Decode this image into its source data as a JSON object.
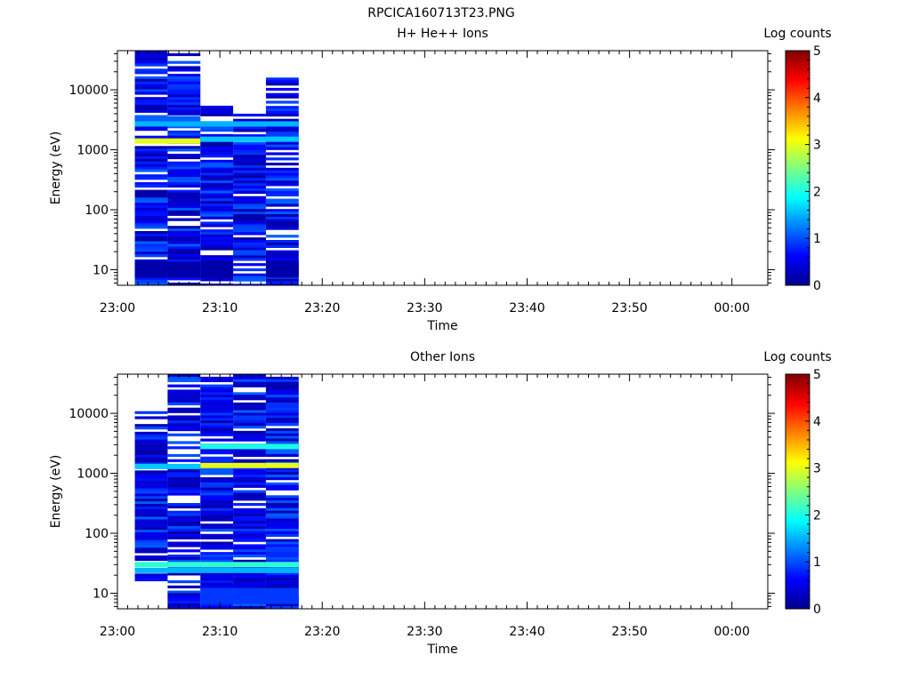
{
  "figure_title": "RPCICA160713T23.PNG",
  "chart_data": [
    {
      "type": "heatmap",
      "title": "H+ He++ Ions",
      "xlabel": "Time",
      "ylabel": "Energy (eV)",
      "x_ticks": [
        "23:00",
        "23:10",
        "23:20",
        "23:30",
        "23:40",
        "23:50",
        "00:00"
      ],
      "x_range_minutes": [
        0,
        63.5
      ],
      "y_scale": "log",
      "y_range": [
        5.5,
        45000
      ],
      "y_ticks": [
        10,
        100,
        1000,
        10000
      ],
      "y_tick_labels": [
        "10",
        "100",
        "1000",
        "10000"
      ],
      "colorbar": {
        "label": "Log counts",
        "range": [
          0,
          5
        ],
        "ticks": [
          "0",
          "1",
          "2",
          "3",
          "4",
          "5"
        ]
      },
      "columns": [
        {
          "t_start": 1.7,
          "t_end": 4.9,
          "e_min": 5.5,
          "e_max": 45000
        },
        {
          "t_start": 4.9,
          "t_end": 8.1,
          "e_min": 5.5,
          "e_max": 45000
        },
        {
          "t_start": 8.1,
          "t_end": 11.3,
          "e_min": 5.5,
          "e_max": 6000
        },
        {
          "t_start": 11.3,
          "t_end": 14.5,
          "e_min": 5.5,
          "e_max": 4000
        },
        {
          "t_start": 14.5,
          "t_end": 17.7,
          "e_min": 5.5,
          "e_max": 16000
        }
      ],
      "bands": [
        {
          "energy": 1400,
          "log_counts": 3.0,
          "col_from": 0,
          "col_to": 1
        },
        {
          "energy": 1500,
          "log_counts": 1.6,
          "col_from": 2,
          "col_to": 4
        },
        {
          "energy": 2700,
          "log_counts": 1.5,
          "col_from": 0,
          "col_to": 4
        },
        {
          "energy": 3300,
          "log_counts": 1.1,
          "col_from": 0,
          "col_to": 1
        },
        {
          "energy": 10,
          "log_counts": 0.15,
          "col_from": 0,
          "col_to": 2
        },
        {
          "energy": 10,
          "log_counts": 0.15,
          "col_from": 4,
          "col_to": 4
        }
      ]
    },
    {
      "type": "heatmap",
      "title": "Other Ions",
      "xlabel": "Time",
      "ylabel": "Energy (eV)",
      "x_ticks": [
        "23:00",
        "23:10",
        "23:20",
        "23:30",
        "23:40",
        "23:50",
        "00:00"
      ],
      "x_range_minutes": [
        0,
        63.5
      ],
      "y_scale": "log",
      "y_range": [
        5.5,
        45000
      ],
      "y_ticks": [
        10,
        100,
        1000,
        10000
      ],
      "y_tick_labels": [
        "10",
        "100",
        "1000",
        "10000"
      ],
      "colorbar": {
        "label": "Log counts",
        "range": [
          0,
          5
        ],
        "ticks": [
          "0",
          "1",
          "2",
          "3",
          "4",
          "5"
        ]
      },
      "columns": [
        {
          "t_start": 1.7,
          "t_end": 4.9,
          "e_min": 16,
          "e_max": 12000
        },
        {
          "t_start": 4.9,
          "t_end": 8.1,
          "e_min": 5.5,
          "e_max": 45000
        },
        {
          "t_start": 8.1,
          "t_end": 11.3,
          "e_min": 5.5,
          "e_max": 45000
        },
        {
          "t_start": 11.3,
          "t_end": 14.5,
          "e_min": 5.5,
          "e_max": 45000
        },
        {
          "t_start": 14.5,
          "t_end": 17.7,
          "e_min": 5.5,
          "e_max": 45000
        }
      ],
      "bands": [
        {
          "energy": 1350,
          "log_counts": 3.0,
          "col_from": 2,
          "col_to": 4
        },
        {
          "energy": 1300,
          "log_counts": 1.6,
          "col_from": 0,
          "col_to": 1
        },
        {
          "energy": 2800,
          "log_counts": 2.0,
          "col_from": 2,
          "col_to": 4
        },
        {
          "energy": 30,
          "log_counts": 2.1,
          "col_from": 0,
          "col_to": 4
        },
        {
          "energy": 24,
          "log_counts": 1.5,
          "col_from": 0,
          "col_to": 4
        },
        {
          "energy": 9,
          "log_counts": 0.9,
          "col_from": 2,
          "col_to": 4
        }
      ]
    }
  ]
}
